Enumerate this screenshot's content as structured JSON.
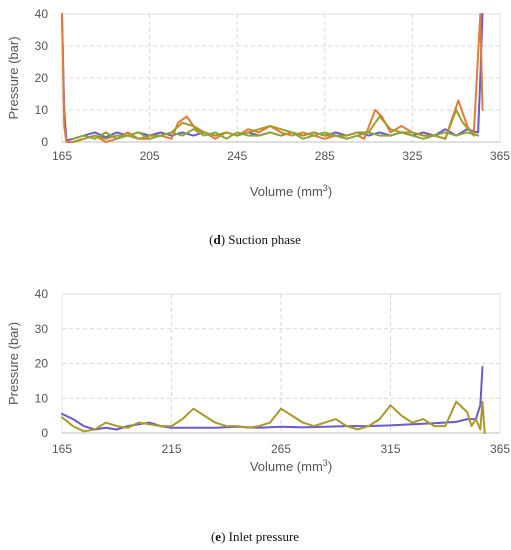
{
  "colors": {
    "purple": "#6a5acd",
    "orange": "#e07b39",
    "olive": "#a89a2a",
    "green": "#8aa83a",
    "grid": "#d9d9d9",
    "text": "#555555"
  },
  "chart_data": [
    {
      "type": "line",
      "id": "d",
      "caption_label": "d",
      "caption_text": " Suction phase",
      "ylabel": "Pressure (bar)",
      "xlabel_main": "Volume (mm",
      "xlabel_sup": "3",
      "xlabel_end": ")",
      "xlim": [
        165,
        365
      ],
      "ylim": [
        0,
        40
      ],
      "x_ticks": [
        "165",
        "205",
        "245",
        "285",
        "325",
        "365"
      ],
      "y_ticks": [
        "0",
        "10",
        "20",
        "30",
        "40"
      ],
      "grid": true,
      "series": [
        {
          "color": "purple",
          "points": [
            [
              165,
              40
            ],
            [
              166,
              10
            ],
            [
              167,
              0.5
            ],
            [
              170,
              1
            ],
            [
              175,
              2
            ],
            [
              180,
              3
            ],
            [
              185,
              1.5
            ],
            [
              190,
              3
            ],
            [
              195,
              2
            ],
            [
              200,
              3
            ],
            [
              205,
              2
            ],
            [
              210,
              3
            ],
            [
              215,
              2
            ],
            [
              220,
              3
            ],
            [
              225,
              2
            ],
            [
              230,
              3
            ],
            [
              235,
              2
            ],
            [
              240,
              3
            ],
            [
              245,
              2
            ],
            [
              250,
              3
            ],
            [
              255,
              2
            ],
            [
              260,
              3
            ],
            [
              265,
              2
            ],
            [
              270,
              3
            ],
            [
              275,
              2
            ],
            [
              280,
              3
            ],
            [
              285,
              2
            ],
            [
              290,
              3
            ],
            [
              295,
              2
            ],
            [
              300,
              3
            ],
            [
              305,
              2
            ],
            [
              310,
              3
            ],
            [
              315,
              2
            ],
            [
              320,
              3
            ],
            [
              325,
              2
            ],
            [
              330,
              3
            ],
            [
              335,
              2
            ],
            [
              340,
              4
            ],
            [
              345,
              2
            ],
            [
              350,
              4
            ],
            [
              355,
              3
            ],
            [
              356,
              20
            ],
            [
              357,
              40
            ]
          ]
        },
        {
          "color": "orange",
          "points": [
            [
              165,
              40
            ],
            [
              166,
              5
            ],
            [
              167,
              0
            ],
            [
              170,
              0
            ],
            [
              175,
              1
            ],
            [
              180,
              2
            ],
            [
              185,
              0
            ],
            [
              190,
              1
            ],
            [
              195,
              3
            ],
            [
              200,
              1
            ],
            [
              205,
              1
            ],
            [
              210,
              2
            ],
            [
              215,
              1
            ],
            [
              218,
              6
            ],
            [
              222,
              8
            ],
            [
              226,
              4
            ],
            [
              230,
              3
            ],
            [
              235,
              1
            ],
            [
              240,
              3
            ],
            [
              245,
              2
            ],
            [
              250,
              4
            ],
            [
              255,
              3
            ],
            [
              260,
              5
            ],
            [
              265,
              3
            ],
            [
              270,
              2
            ],
            [
              275,
              3
            ],
            [
              280,
              2
            ],
            [
              285,
              1
            ],
            [
              290,
              2
            ],
            [
              295,
              1
            ],
            [
              300,
              2
            ],
            [
              303,
              1
            ],
            [
              308,
              10
            ],
            [
              311,
              8
            ],
            [
              315,
              3
            ],
            [
              320,
              5
            ],
            [
              325,
              3
            ],
            [
              330,
              2
            ],
            [
              335,
              2
            ],
            [
              340,
              1
            ],
            [
              342,
              5
            ],
            [
              346,
              13
            ],
            [
              350,
              5
            ],
            [
              353,
              2
            ],
            [
              356,
              40
            ],
            [
              357,
              10
            ]
          ]
        },
        {
          "color": "olive",
          "points": [
            [
              170,
              0
            ],
            [
              175,
              1
            ],
            [
              180,
              2
            ],
            [
              185,
              1
            ],
            [
              190,
              2
            ],
            [
              195,
              2
            ],
            [
              200,
              1
            ],
            [
              205,
              2
            ],
            [
              210,
              2
            ],
            [
              215,
              3
            ],
            [
              220,
              6
            ],
            [
              225,
              5
            ],
            [
              230,
              3
            ],
            [
              235,
              2
            ],
            [
              240,
              3
            ],
            [
              245,
              2
            ],
            [
              250,
              3
            ],
            [
              255,
              4
            ],
            [
              260,
              5
            ],
            [
              265,
              4
            ],
            [
              270,
              3
            ],
            [
              275,
              2
            ],
            [
              280,
              3
            ],
            [
              285,
              2
            ],
            [
              290,
              2
            ],
            [
              295,
              2
            ],
            [
              300,
              3
            ],
            [
              305,
              3
            ],
            [
              310,
              8
            ],
            [
              315,
              4
            ],
            [
              320,
              3
            ],
            [
              325,
              3
            ],
            [
              330,
              2
            ],
            [
              335,
              2
            ],
            [
              340,
              1
            ],
            [
              345,
              10
            ],
            [
              348,
              6
            ],
            [
              352,
              3
            ],
            [
              355,
              2
            ]
          ]
        },
        {
          "color": "green",
          "points": [
            [
              170,
              1
            ],
            [
              175,
              2
            ],
            [
              180,
              1
            ],
            [
              185,
              3
            ],
            [
              190,
              1
            ],
            [
              195,
              2
            ],
            [
              200,
              3
            ],
            [
              205,
              1
            ],
            [
              210,
              2
            ],
            [
              215,
              3
            ],
            [
              220,
              2
            ],
            [
              225,
              4
            ],
            [
              230,
              2
            ],
            [
              235,
              3
            ],
            [
              240,
              1
            ],
            [
              245,
              3
            ],
            [
              250,
              2
            ],
            [
              255,
              2
            ],
            [
              260,
              3
            ],
            [
              265,
              2
            ],
            [
              270,
              3
            ],
            [
              275,
              1
            ],
            [
              280,
              2
            ],
            [
              285,
              3
            ],
            [
              290,
              2
            ],
            [
              295,
              1
            ],
            [
              300,
              2
            ],
            [
              305,
              3
            ],
            [
              310,
              2
            ],
            [
              315,
              2
            ],
            [
              320,
              3
            ],
            [
              325,
              2
            ],
            [
              330,
              1
            ],
            [
              335,
              2
            ],
            [
              340,
              3
            ],
            [
              345,
              2
            ],
            [
              350,
              3
            ],
            [
              355,
              2
            ]
          ]
        }
      ]
    },
    {
      "type": "line",
      "id": "e",
      "caption_label": "e",
      "caption_text": " Inlet pressure",
      "ylabel": "Pressure (bar)",
      "xlabel_main": "Volume (mm",
      "xlabel_sup": "3",
      "xlabel_end": ")",
      "xlim": [
        165,
        365
      ],
      "ylim": [
        0,
        40
      ],
      "x_ticks": [
        "165",
        "215",
        "265",
        "315",
        "365"
      ],
      "y_ticks": [
        "0",
        "10",
        "20",
        "30",
        "40"
      ],
      "grid": true,
      "series": [
        {
          "color": "purple",
          "points": [
            [
              165,
              5.5
            ],
            [
              170,
              4
            ],
            [
              175,
              2
            ],
            [
              180,
              1
            ],
            [
              185,
              1.5
            ],
            [
              190,
              1
            ],
            [
              195,
              2
            ],
            [
              200,
              2.5
            ],
            [
              205,
              3
            ],
            [
              210,
              2
            ],
            [
              215,
              1.5
            ],
            [
              225,
              1.5
            ],
            [
              235,
              1.5
            ],
            [
              245,
              1.8
            ],
            [
              255,
              1.5
            ],
            [
              265,
              1.8
            ],
            [
              275,
              1.6
            ],
            [
              285,
              1.8
            ],
            [
              295,
              2
            ],
            [
              305,
              2
            ],
            [
              315,
              2.2
            ],
            [
              325,
              2.5
            ],
            [
              335,
              2.8
            ],
            [
              345,
              3.2
            ],
            [
              350,
              4
            ],
            [
              354,
              4
            ],
            [
              356,
              8
            ],
            [
              357,
              19
            ]
          ]
        },
        {
          "color": "olive",
          "points": [
            [
              165,
              4.5
            ],
            [
              170,
              2
            ],
            [
              175,
              0.5
            ],
            [
              180,
              1
            ],
            [
              185,
              3
            ],
            [
              190,
              2
            ],
            [
              195,
              1.5
            ],
            [
              200,
              3
            ],
            [
              205,
              2.5
            ],
            [
              210,
              2
            ],
            [
              215,
              2
            ],
            [
              220,
              4
            ],
            [
              225,
              7
            ],
            [
              230,
              5
            ],
            [
              235,
              3
            ],
            [
              240,
              2
            ],
            [
              245,
              2
            ],
            [
              250,
              1.5
            ],
            [
              255,
              2
            ],
            [
              260,
              3
            ],
            [
              265,
              7
            ],
            [
              270,
              5
            ],
            [
              275,
              3
            ],
            [
              280,
              2
            ],
            [
              285,
              3
            ],
            [
              290,
              4
            ],
            [
              295,
              2
            ],
            [
              300,
              1
            ],
            [
              305,
              2
            ],
            [
              310,
              4
            ],
            [
              315,
              8
            ],
            [
              320,
              5
            ],
            [
              325,
              3
            ],
            [
              330,
              4
            ],
            [
              335,
              2
            ],
            [
              340,
              2
            ],
            [
              345,
              9
            ],
            [
              350,
              6
            ],
            [
              352,
              2
            ],
            [
              354,
              4
            ],
            [
              356,
              1
            ],
            [
              357,
              9
            ],
            [
              358,
              0
            ]
          ]
        }
      ]
    }
  ]
}
